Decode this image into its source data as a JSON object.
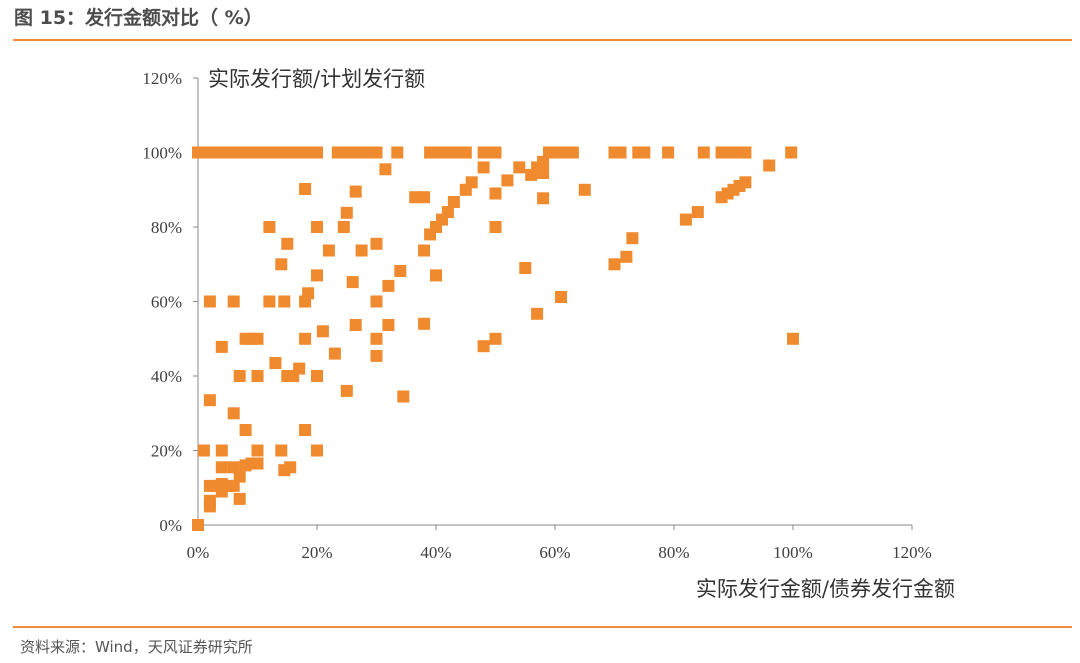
{
  "figure": {
    "title": "图 15：发行金额对比（ %）",
    "source": "资料来源：Wind，天风证券研究所"
  },
  "colors": {
    "accent_rule": "#ec8c3c",
    "marker": "#f08a2e",
    "axis": "#888888"
  },
  "chart_data": {
    "type": "scatter",
    "title": "",
    "xlabel": "实际发行金额/债券发行金额",
    "ylabel": "实际发行额/计划发行额",
    "xlim": [
      0,
      1.2
    ],
    "ylim": [
      0,
      1.2
    ],
    "x_ticks": [
      0,
      0.2,
      0.4,
      0.6,
      0.8,
      1.0,
      1.2
    ],
    "x_tick_labels": [
      "0%",
      "20%",
      "40%",
      "60%",
      "80%",
      "100%",
      "120%"
    ],
    "y_ticks": [
      0,
      0.2,
      0.4,
      0.6,
      0.8,
      1.0,
      1.2
    ],
    "y_tick_labels": [
      "0%",
      "20%",
      "40%",
      "60%",
      "80%",
      "100%",
      "120%"
    ],
    "grid": false,
    "legend": "none",
    "marker": "square",
    "series": [
      {
        "points": [
          [
            0.0,
            0.0
          ],
          [
            0.0,
            1.0
          ],
          [
            0.01,
            1.0
          ],
          [
            0.02,
            1.0
          ],
          [
            0.03,
            1.0
          ],
          [
            0.04,
            1.0
          ],
          [
            0.05,
            1.0
          ],
          [
            0.06,
            1.0
          ],
          [
            0.07,
            1.0
          ],
          [
            0.08,
            1.0
          ],
          [
            0.09,
            1.0
          ],
          [
            0.1,
            1.0
          ],
          [
            0.11,
            1.0
          ],
          [
            0.12,
            1.0
          ],
          [
            0.13,
            1.0
          ],
          [
            0.14,
            1.0
          ],
          [
            0.15,
            1.0
          ],
          [
            0.16,
            1.0
          ],
          [
            0.17,
            1.0
          ],
          [
            0.18,
            1.0
          ],
          [
            0.19,
            1.0
          ],
          [
            0.2,
            1.0
          ],
          [
            0.235,
            1.0
          ],
          [
            0.245,
            1.0
          ],
          [
            0.255,
            1.0
          ],
          [
            0.265,
            1.0
          ],
          [
            0.275,
            1.0
          ],
          [
            0.285,
            1.0
          ],
          [
            0.295,
            1.0
          ],
          [
            0.3,
            1.0
          ],
          [
            0.335,
            1.0
          ],
          [
            0.39,
            1.0
          ],
          [
            0.4,
            1.0
          ],
          [
            0.41,
            1.0
          ],
          [
            0.42,
            1.0
          ],
          [
            0.43,
            1.0
          ],
          [
            0.44,
            1.0
          ],
          [
            0.45,
            1.0
          ],
          [
            0.48,
            1.0
          ],
          [
            0.49,
            1.0
          ],
          [
            0.5,
            1.0
          ],
          [
            0.59,
            1.0
          ],
          [
            0.6,
            1.0
          ],
          [
            0.62,
            1.0
          ],
          [
            0.63,
            1.0
          ],
          [
            0.7,
            1.0
          ],
          [
            0.71,
            1.0
          ],
          [
            0.74,
            1.0
          ],
          [
            0.75,
            1.0
          ],
          [
            0.79,
            1.0
          ],
          [
            0.85,
            1.0
          ],
          [
            0.88,
            1.0
          ],
          [
            0.9,
            1.0
          ],
          [
            0.91,
            1.0
          ],
          [
            0.92,
            1.0
          ],
          [
            0.997,
            1.0
          ],
          [
            0.315,
            0.955
          ],
          [
            0.265,
            0.895
          ],
          [
            0.18,
            0.902
          ],
          [
            0.365,
            0.88
          ],
          [
            0.25,
            0.838
          ],
          [
            0.245,
            0.8
          ],
          [
            0.12,
            0.8
          ],
          [
            0.2,
            0.8
          ],
          [
            0.15,
            0.755
          ],
          [
            0.3,
            0.755
          ],
          [
            0.22,
            0.737
          ],
          [
            0.275,
            0.737
          ],
          [
            0.14,
            0.7
          ],
          [
            0.2,
            0.67
          ],
          [
            0.34,
            0.682
          ],
          [
            0.32,
            0.642
          ],
          [
            0.26,
            0.652
          ],
          [
            0.185,
            0.622
          ],
          [
            0.18,
            0.6
          ],
          [
            0.12,
            0.6
          ],
          [
            0.145,
            0.6
          ],
          [
            0.3,
            0.6
          ],
          [
            0.02,
            0.6
          ],
          [
            0.06,
            0.6
          ],
          [
            0.21,
            0.52
          ],
          [
            0.265,
            0.537
          ],
          [
            0.32,
            0.537
          ],
          [
            0.3,
            0.5
          ],
          [
            0.18,
            0.5
          ],
          [
            0.08,
            0.5
          ],
          [
            0.09,
            0.5
          ],
          [
            0.1,
            0.5
          ],
          [
            0.04,
            0.478
          ],
          [
            0.23,
            0.46
          ],
          [
            0.3,
            0.454
          ],
          [
            0.13,
            0.435
          ],
          [
            0.17,
            0.42
          ],
          [
            0.15,
            0.4
          ],
          [
            0.16,
            0.4
          ],
          [
            0.2,
            0.4
          ],
          [
            0.07,
            0.4
          ],
          [
            0.1,
            0.4
          ],
          [
            0.25,
            0.36
          ],
          [
            0.345,
            0.345
          ],
          [
            0.02,
            0.335
          ],
          [
            0.06,
            0.3
          ],
          [
            0.08,
            0.255
          ],
          [
            0.18,
            0.255
          ],
          [
            0.01,
            0.2
          ],
          [
            0.04,
            0.2
          ],
          [
            0.1,
            0.2
          ],
          [
            0.14,
            0.2
          ],
          [
            0.2,
            0.2
          ],
          [
            0.06,
            0.155
          ],
          [
            0.09,
            0.165
          ],
          [
            0.1,
            0.165
          ],
          [
            0.145,
            0.147
          ],
          [
            0.155,
            0.155
          ],
          [
            0.08,
            0.16
          ],
          [
            0.04,
            0.155
          ],
          [
            0.07,
            0.13
          ],
          [
            0.03,
            0.105
          ],
          [
            0.04,
            0.11
          ],
          [
            0.05,
            0.105
          ],
          [
            0.06,
            0.105
          ],
          [
            0.04,
            0.09
          ],
          [
            0.02,
            0.105
          ],
          [
            0.02,
            0.065
          ],
          [
            0.02,
            0.05
          ],
          [
            0.07,
            0.07
          ],
          [
            0.38,
            0.737
          ],
          [
            0.39,
            0.78
          ],
          [
            0.4,
            0.8
          ],
          [
            0.41,
            0.82
          ],
          [
            0.42,
            0.84
          ],
          [
            0.43,
            0.867
          ],
          [
            0.45,
            0.9
          ],
          [
            0.46,
            0.92
          ],
          [
            0.48,
            0.96
          ],
          [
            0.5,
            0.89
          ],
          [
            0.52,
            0.925
          ],
          [
            0.54,
            0.96
          ],
          [
            0.56,
            0.94
          ],
          [
            0.57,
            0.96
          ],
          [
            0.58,
            0.945
          ],
          [
            0.58,
            0.975
          ],
          [
            0.58,
            0.877
          ],
          [
            0.65,
            0.9
          ],
          [
            0.38,
            0.88
          ],
          [
            0.4,
            0.67
          ],
          [
            0.5,
            0.8
          ],
          [
            0.55,
            0.69
          ],
          [
            0.38,
            0.54
          ],
          [
            0.48,
            0.48
          ],
          [
            0.5,
            0.5
          ],
          [
            0.57,
            0.567
          ],
          [
            0.61,
            0.612
          ],
          [
            0.7,
            0.7
          ],
          [
            0.72,
            0.72
          ],
          [
            0.73,
            0.77
          ],
          [
            0.82,
            0.82
          ],
          [
            0.84,
            0.84
          ],
          [
            0.88,
            0.88
          ],
          [
            0.89,
            0.89
          ],
          [
            0.9,
            0.9
          ],
          [
            0.91,
            0.91
          ],
          [
            0.92,
            0.92
          ],
          [
            0.96,
            0.965
          ],
          [
            1.0,
            0.5
          ]
        ]
      }
    ]
  }
}
